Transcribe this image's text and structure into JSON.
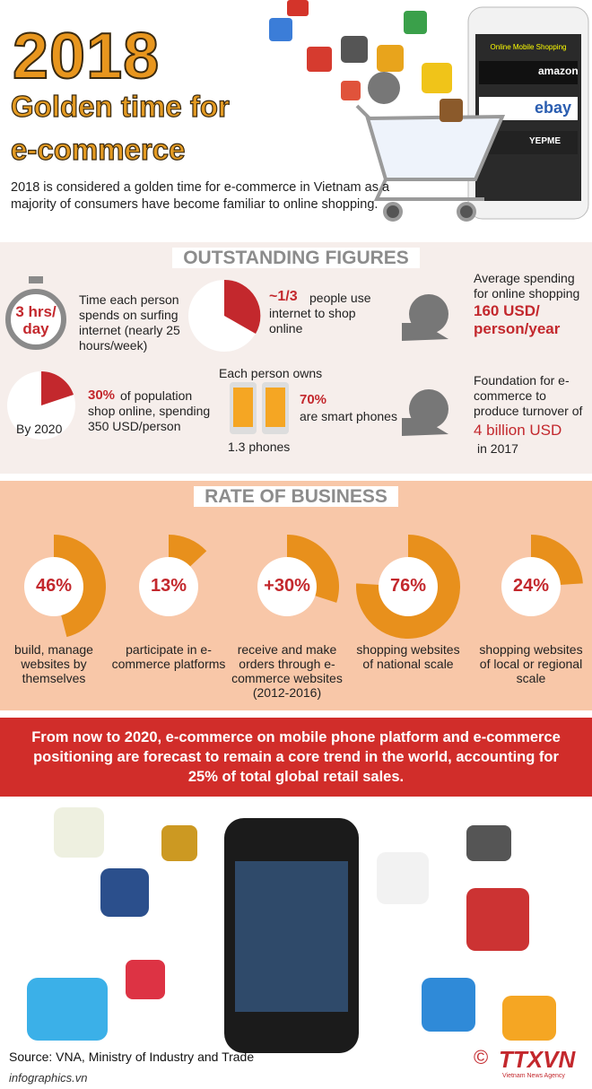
{
  "header": {
    "year": "2018",
    "title_line1": "Golden time for",
    "title_line2": "e-commerce",
    "description": "2018 is considered a golden time for e-commerce in Vietnam as a majority of consumers have become familiar to online shopping.",
    "phone_title": "Online Mobile Shopping",
    "phone_brands": [
      "amazon",
      "ebay",
      "YEPME"
    ]
  },
  "outstanding_figures": {
    "heading": "OUTSTANDING FIGURES",
    "hours": {
      "highlight": "3 hrs/ day",
      "text": "Time each person spends on surfing internet (nearly 25 hours/week)"
    },
    "share": {
      "highlight": "~1/3",
      "text": "people use internet to shop online"
    },
    "spending": {
      "text": "Average spending for online shopping",
      "highlight": "160 USD/ person/year"
    },
    "by2020": {
      "label": "By 2020",
      "highlight": "30%",
      "text": "of population shop online, spending 350 USD/person"
    },
    "phones": {
      "heading": "Each person owns",
      "count": "1.3 phones",
      "highlight": "70%",
      "text": "are smart phones"
    },
    "turnover": {
      "text": "Foundation for e-commerce to produce turnover of",
      "highlight": "4 billion USD",
      "suffix": "in 2017"
    }
  },
  "rate_of_business": {
    "heading": "RATE OF BUSINESS",
    "color": "#e8901c",
    "items": [
      {
        "value": 46,
        "label": "46%",
        "text": "build, manage websites by themselves"
      },
      {
        "value": 13,
        "label": "13%",
        "text": "participate in e-commerce platforms"
      },
      {
        "value": 30,
        "label": "+30%",
        "text": "receive and make orders through e-commerce websites (2012-2016)"
      },
      {
        "value": 76,
        "label": "76%",
        "text": "shopping websites of national scale"
      },
      {
        "value": 24,
        "label": "24%",
        "text": "shopping websites of local or regional scale"
      }
    ]
  },
  "banner": "From now to 2020, e-commerce on mobile phone platform and e-commerce positioning are forecast to remain a core trend in the world, accounting for 25% of total global retail sales.",
  "footer": {
    "source": "Source: VNA, Ministry of Industry and Trade",
    "site": "infographics.vn",
    "copyright": "©",
    "logo": "TTXVN",
    "logo_sub": "Vietnam News Agency"
  }
}
